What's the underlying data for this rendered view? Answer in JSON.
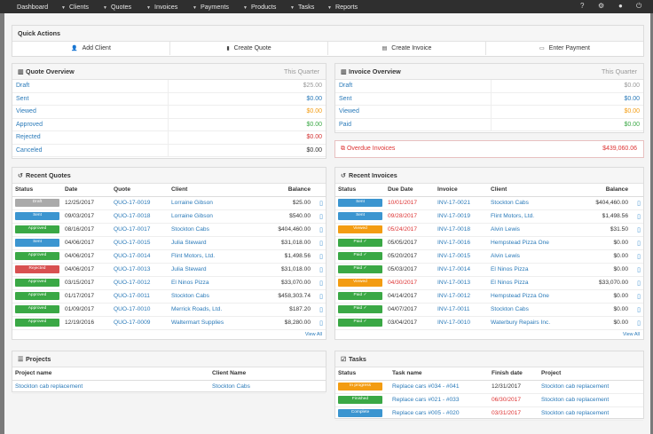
{
  "nav": {
    "items": [
      "Dashboard",
      "Clients",
      "Quotes",
      "Invoices",
      "Payments",
      "Products",
      "Tasks",
      "Reports"
    ],
    "right_icons": [
      "help-icon",
      "settings-icon",
      "user-icon",
      "power-icon"
    ]
  },
  "quick_actions": {
    "title": "Quick Actions",
    "buttons": [
      {
        "label": "Add Client",
        "icon": "add-user-icon"
      },
      {
        "label": "Create Quote",
        "icon": "document-icon"
      },
      {
        "label": "Create Invoice",
        "icon": "invoice-icon"
      },
      {
        "label": "Enter Payment",
        "icon": "credit-card-icon"
      }
    ]
  },
  "quote_overview": {
    "title": "Quote Overview",
    "period": "This Quarter",
    "rows": [
      {
        "label": "Draft",
        "amount": "$25.00",
        "color": "#999999"
      },
      {
        "label": "Sent",
        "amount": "$0.00",
        "color": "#2a7ab9"
      },
      {
        "label": "Viewed",
        "amount": "$0.00",
        "color": "#f39c12"
      },
      {
        "label": "Approved",
        "amount": "$0.00",
        "color": "#3aa845"
      },
      {
        "label": "Rejected",
        "amount": "$0.00",
        "color": "#d33333"
      },
      {
        "label": "Canceled",
        "amount": "$0.00",
        "color": "#333333"
      }
    ]
  },
  "invoice_overview": {
    "title": "Invoice Overview",
    "period": "This Quarter",
    "rows": [
      {
        "label": "Draft",
        "amount": "$0.00",
        "color": "#999999"
      },
      {
        "label": "Sent",
        "amount": "$0.00",
        "color": "#2a7ab9"
      },
      {
        "label": "Viewed",
        "amount": "$0.00",
        "color": "#f39c12"
      },
      {
        "label": "Paid",
        "amount": "$0.00",
        "color": "#3aa845"
      }
    ],
    "overdue_label": "Overdue Invoices",
    "overdue_amount": "$439,060.06"
  },
  "recent_quotes": {
    "title": "Recent Quotes",
    "columns": [
      "Status",
      "Date",
      "Quote",
      "Client",
      "Balance"
    ],
    "rows": [
      {
        "status": "Draft",
        "cls": "b-draft",
        "date": "12/25/2017",
        "num": "QUO-17-0019",
        "client": "Lorraine Gibson",
        "balance": "$25.00"
      },
      {
        "status": "Sent",
        "cls": "b-sent",
        "date": "09/03/2017",
        "num": "QUO-17-0018",
        "client": "Lorraine Gibson",
        "balance": "$540.00"
      },
      {
        "status": "Approved",
        "cls": "b-approved",
        "date": "08/16/2017",
        "num": "QUO-17-0017",
        "client": "Stockton Cabs",
        "balance": "$404,460.00"
      },
      {
        "status": "Sent",
        "cls": "b-sent",
        "date": "04/06/2017",
        "num": "QUO-17-0015",
        "client": "Julia Steward",
        "balance": "$31,018.00"
      },
      {
        "status": "Approved",
        "cls": "b-approved",
        "date": "04/06/2017",
        "num": "QUO-17-0014",
        "client": "Flint Motors, Ltd.",
        "balance": "$1,498.56"
      },
      {
        "status": "Rejected",
        "cls": "b-rejected",
        "date": "04/06/2017",
        "num": "QUO-17-0013",
        "client": "Julia Steward",
        "balance": "$31,018.00"
      },
      {
        "status": "Approved",
        "cls": "b-approved",
        "date": "03/15/2017",
        "num": "QUO-17-0012",
        "client": "El Ninos Pizza",
        "balance": "$33,070.00"
      },
      {
        "status": "Approved",
        "cls": "b-approved",
        "date": "01/17/2017",
        "num": "QUO-17-0011",
        "client": "Stockton Cabs",
        "balance": "$458,303.74"
      },
      {
        "status": "Approved",
        "cls": "b-approved",
        "date": "01/09/2017",
        "num": "QUO-17-0010",
        "client": "Merrick Roads, Ltd.",
        "balance": "$187.20"
      },
      {
        "status": "Approved",
        "cls": "b-approved",
        "date": "12/19/2016",
        "num": "QUO-17-0009",
        "client": "Waltermart Supplies",
        "balance": "$8,280.00"
      }
    ],
    "view_all": "View All"
  },
  "recent_invoices": {
    "title": "Recent Invoices",
    "columns": [
      "Status",
      "Due Date",
      "Invoice",
      "Client",
      "Balance"
    ],
    "rows": [
      {
        "status": "Sent",
        "cls": "b-sent",
        "date": "10/01/2017",
        "overdue": true,
        "num": "INV-17-0021",
        "client": "Stockton Cabs",
        "balance": "$404,460.00"
      },
      {
        "status": "Sent",
        "cls": "b-sent",
        "date": "09/28/2017",
        "overdue": true,
        "num": "INV-17-0019",
        "client": "Flint Motors, Ltd.",
        "balance": "$1,498.56"
      },
      {
        "status": "Viewed",
        "cls": "b-viewed",
        "date": "05/24/2017",
        "overdue": true,
        "num": "INV-17-0018",
        "client": "Alvin Lewis",
        "balance": "$31.50"
      },
      {
        "status": "Paid",
        "cls": "b-paid",
        "date": "05/05/2017",
        "overdue": false,
        "num": "INV-17-0016",
        "client": "Hempstead Pizza One",
        "balance": "$0.00"
      },
      {
        "status": "Paid",
        "cls": "b-paid",
        "date": "05/20/2017",
        "overdue": false,
        "num": "INV-17-0015",
        "client": "Alvin Lewis",
        "balance": "$0.00"
      },
      {
        "status": "Paid",
        "cls": "b-paid",
        "date": "05/03/2017",
        "overdue": false,
        "num": "INV-17-0014",
        "client": "El Ninos Pizza",
        "balance": "$0.00"
      },
      {
        "status": "Viewed",
        "cls": "b-viewed",
        "date": "04/30/2017",
        "overdue": true,
        "num": "INV-17-0013",
        "client": "El Ninos Pizza",
        "balance": "$33,070.00"
      },
      {
        "status": "Paid",
        "cls": "b-paid",
        "date": "04/14/2017",
        "overdue": false,
        "num": "INV-17-0012",
        "client": "Hempstead Pizza One",
        "balance": "$0.00"
      },
      {
        "status": "Paid",
        "cls": "b-paid",
        "date": "04/07/2017",
        "overdue": false,
        "num": "INV-17-0011",
        "client": "Stockton Cabs",
        "balance": "$0.00"
      },
      {
        "status": "Paid",
        "cls": "b-paid",
        "date": "03/04/2017",
        "overdue": false,
        "num": "INV-17-0010",
        "client": "Waterbury Repairs Inc.",
        "balance": "$0.00"
      }
    ],
    "view_all": "View All"
  },
  "projects": {
    "title": "Projects",
    "columns": [
      "Project name",
      "Client Name"
    ],
    "rows": [
      {
        "name": "Stockton cab replacement",
        "client": "Stockton Cabs"
      }
    ]
  },
  "tasks": {
    "title": "Tasks",
    "columns": [
      "Status",
      "Task name",
      "Finish date",
      "Project"
    ],
    "rows": [
      {
        "status": "In progress",
        "cls": "b-inprog",
        "name": "Replace cars #034 - #041",
        "date": "12/31/2017",
        "overdue": false,
        "project": "Stockton cab replacement"
      },
      {
        "status": "Finished",
        "cls": "b-approved",
        "name": "Replace cars #021 - #033",
        "date": "06/30/2017",
        "overdue": true,
        "project": "Stockton cab replacement"
      },
      {
        "status": "Complete",
        "cls": "b-complete",
        "name": "Replace cars #005 - #020",
        "date": "03/31/2017",
        "overdue": true,
        "project": "Stockton cab replacement"
      }
    ]
  }
}
